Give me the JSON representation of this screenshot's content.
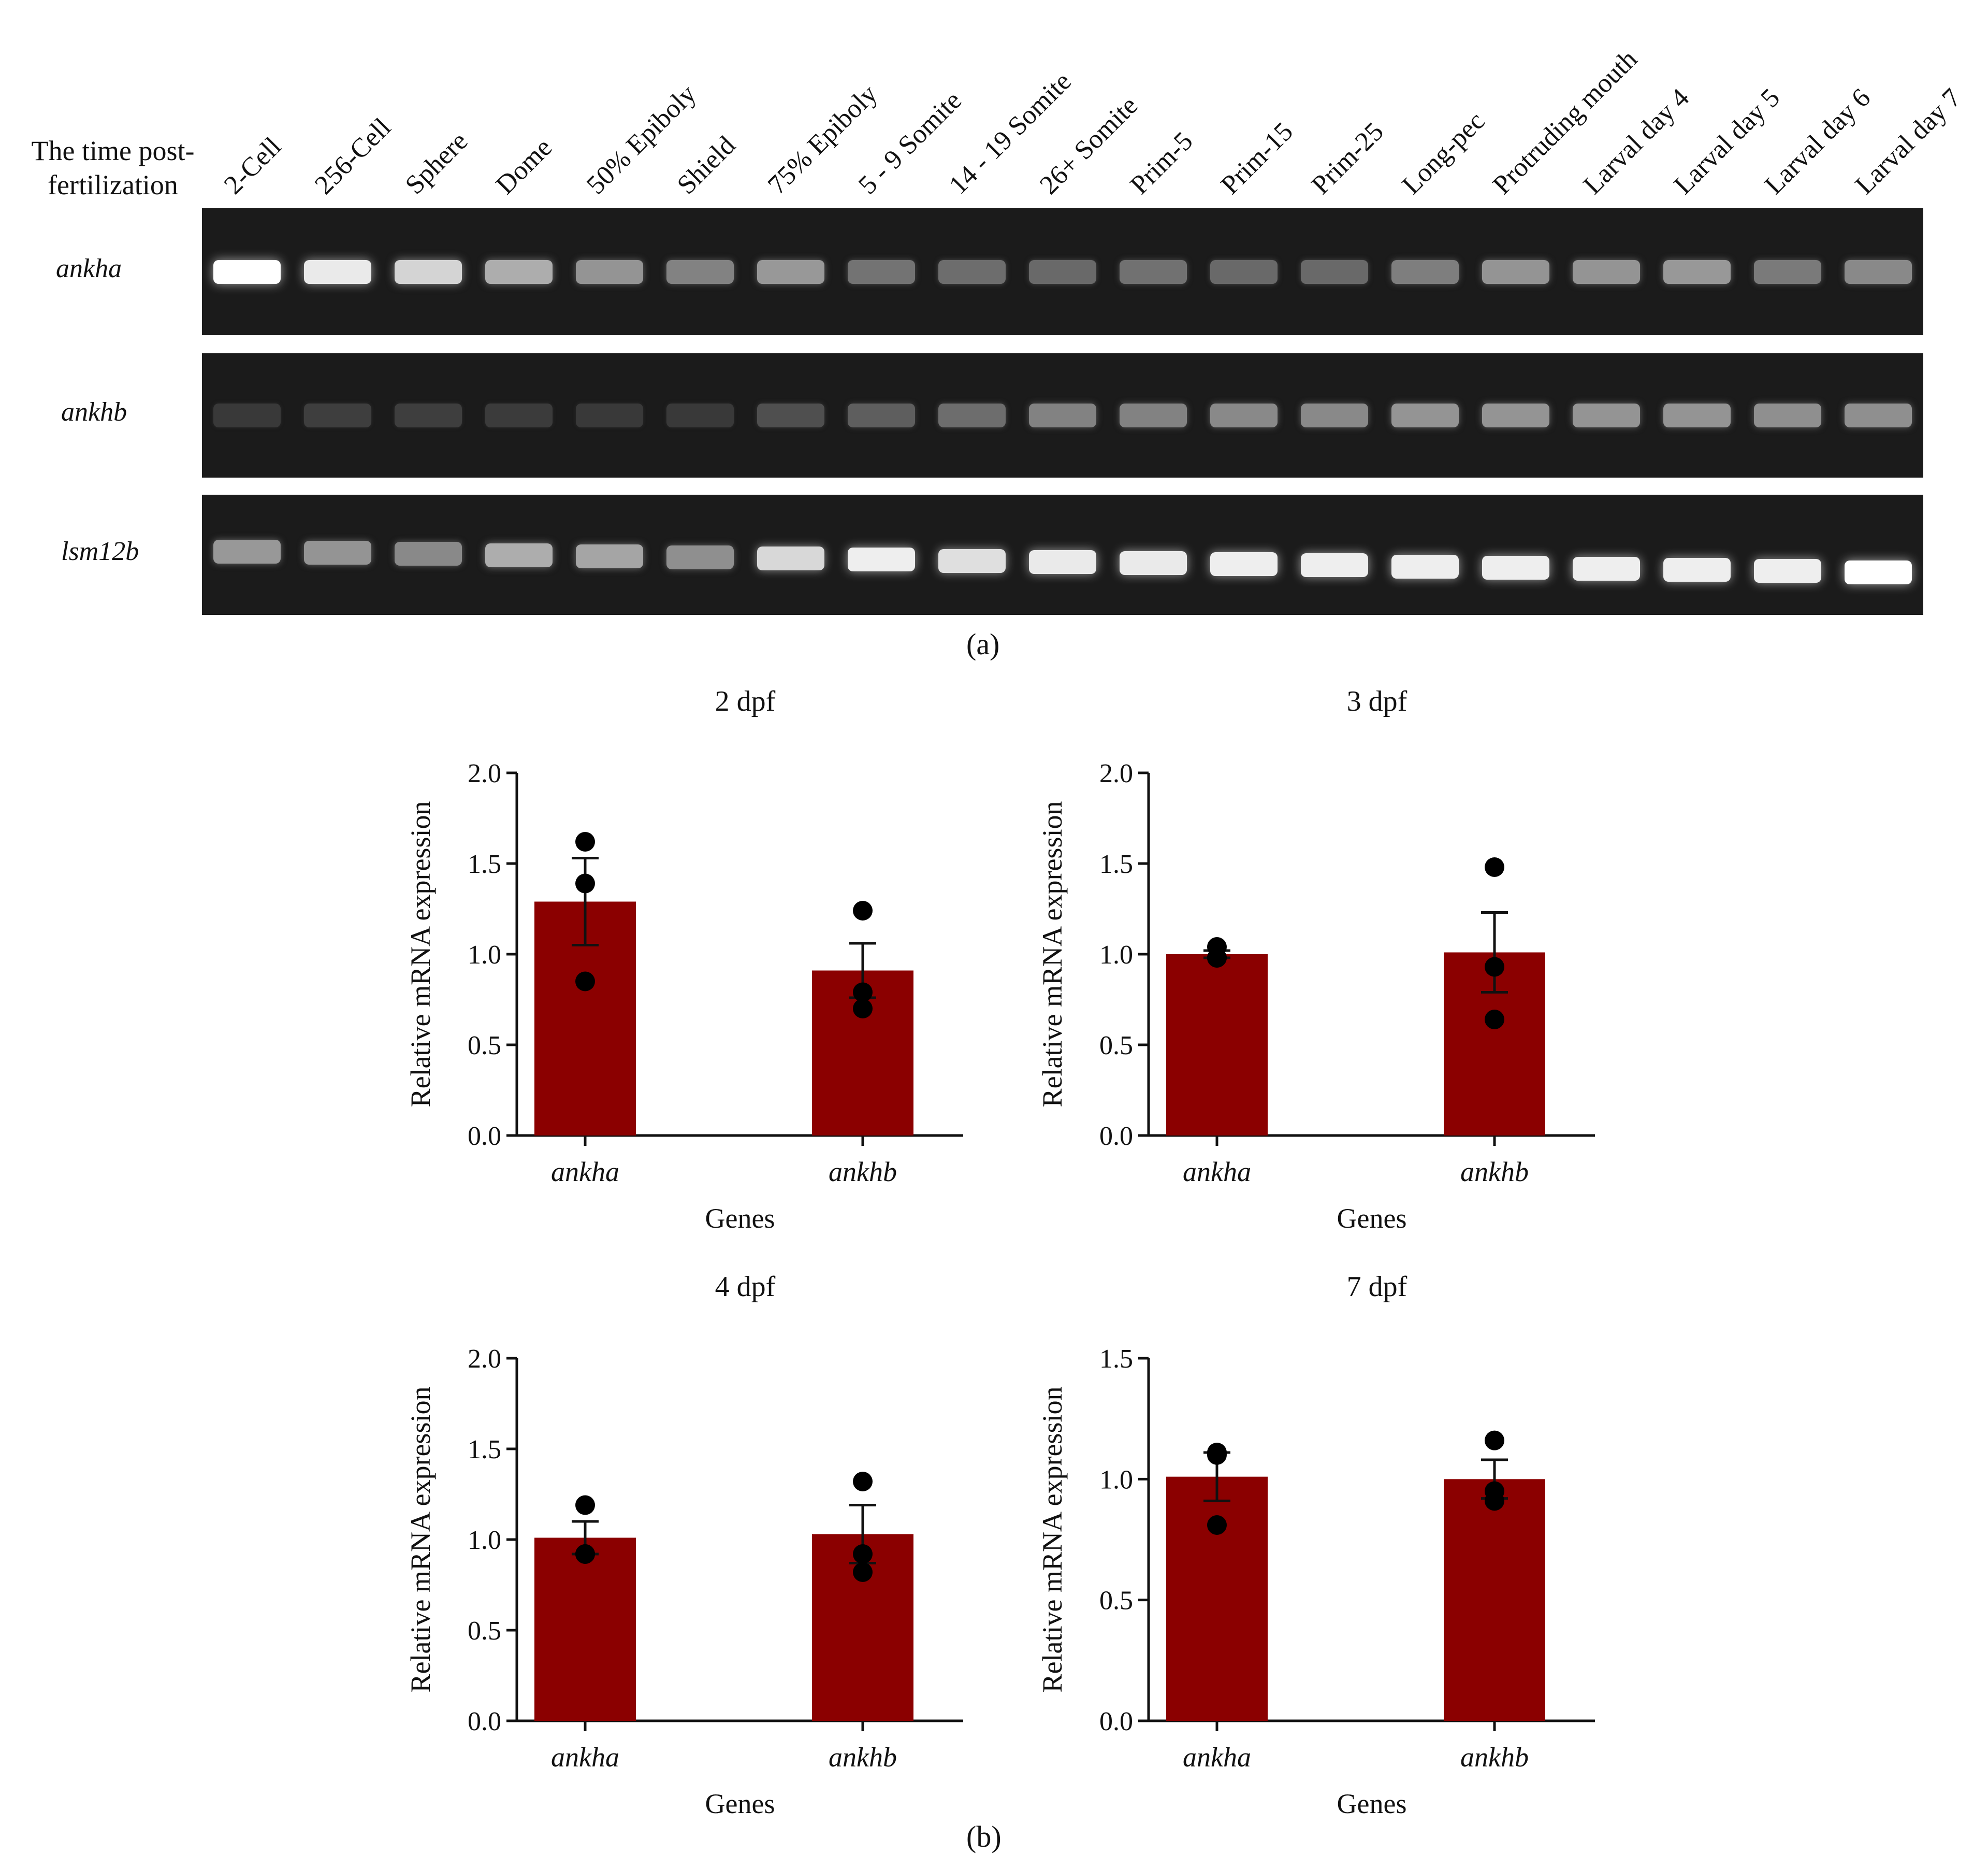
{
  "panel_a": {
    "label": "(a)",
    "row_header": "The time post-fertilization",
    "stages": [
      "2-Cell",
      "256-Cell",
      "Sphere",
      "Dome",
      "50% Epiboly",
      "Shield",
      "75% Epiboly",
      "5 - 9 Somite",
      "14 - 19 Somite",
      "26+ Somite",
      "Prim-5",
      "Prim-15",
      "Prim-25",
      "Long-pec",
      "Protruding mouth",
      "Larval day 4",
      "Larval day 5",
      "Larval day 6",
      "Larval day 7"
    ],
    "genes": [
      {
        "name": "ankha",
        "band_intensity": [
          1.0,
          0.9,
          0.8,
          0.62,
          0.5,
          0.42,
          0.52,
          0.35,
          0.32,
          0.3,
          0.34,
          0.3,
          0.3,
          0.4,
          0.5,
          0.5,
          0.52,
          0.38,
          0.45
        ]
      },
      {
        "name": "ankhb",
        "band_intensity": [
          0.08,
          0.1,
          0.1,
          0.09,
          0.08,
          0.08,
          0.18,
          0.25,
          0.32,
          0.42,
          0.42,
          0.45,
          0.45,
          0.5,
          0.5,
          0.5,
          0.5,
          0.48,
          0.48
        ]
      },
      {
        "name": "lsm12b",
        "band_intensity": [
          0.52,
          0.5,
          0.45,
          0.62,
          0.58,
          0.48,
          0.82,
          0.92,
          0.85,
          0.9,
          0.9,
          0.92,
          0.92,
          0.92,
          0.92,
          0.92,
          0.92,
          0.92,
          1.0
        ]
      }
    ]
  },
  "panel_b": {
    "label": "(b)"
  },
  "chart_data": [
    {
      "type": "bar",
      "title": "2 dpf",
      "xlabel": "Genes",
      "ylabel": "Relative mRNA expression",
      "categories": [
        "ankha",
        "ankhb"
      ],
      "values": [
        1.29,
        0.91
      ],
      "sem": [
        0.24,
        0.15
      ],
      "points": [
        [
          1.62,
          1.39,
          0.85
        ],
        [
          1.24,
          0.79,
          0.7
        ]
      ],
      "ylim": [
        0,
        2.0
      ],
      "yticks": [
        "0.0",
        "0.5",
        "1.0",
        "1.5",
        "2.0"
      ],
      "bar_color": "#8b0000"
    },
    {
      "type": "bar",
      "title": "3 dpf",
      "xlabel": "Genes",
      "ylabel": "Relative mRNA expression",
      "categories": [
        "ankha",
        "ankhb"
      ],
      "values": [
        1.0,
        1.01
      ],
      "sem": [
        0.02,
        0.22
      ],
      "points": [
        [
          1.04,
          0.98,
          0.98
        ],
        [
          1.48,
          0.93,
          0.64
        ]
      ],
      "ylim": [
        0,
        2.0
      ],
      "yticks": [
        "0.0",
        "0.5",
        "1.0",
        "1.5",
        "2.0"
      ],
      "bar_color": "#8b0000"
    },
    {
      "type": "bar",
      "title": "4 dpf",
      "xlabel": "Genes",
      "ylabel": "Relative mRNA expression",
      "categories": [
        "ankha",
        "ankhb"
      ],
      "values": [
        1.01,
        1.03
      ],
      "sem": [
        0.09,
        0.16
      ],
      "points": [
        [
          1.19,
          0.92,
          0.92
        ],
        [
          1.32,
          0.92,
          0.82
        ]
      ],
      "ylim": [
        0,
        2.0
      ],
      "yticks": [
        "0.0",
        "0.5",
        "1.0",
        "1.5",
        "2.0"
      ],
      "bar_color": "#8b0000"
    },
    {
      "type": "bar",
      "title": "7 dpf",
      "xlabel": "Genes",
      "ylabel": "Relative mRNA expression",
      "categories": [
        "ankha",
        "ankhb"
      ],
      "values": [
        1.01,
        1.0
      ],
      "sem": [
        0.1,
        0.08
      ],
      "points": [
        [
          1.11,
          1.1,
          0.81
        ],
        [
          1.16,
          0.95,
          0.91
        ]
      ],
      "ylim": [
        0,
        1.5
      ],
      "yticks": [
        "0.0",
        "0.5",
        "1.0",
        "1.5"
      ],
      "bar_color": "#8b0000"
    }
  ]
}
